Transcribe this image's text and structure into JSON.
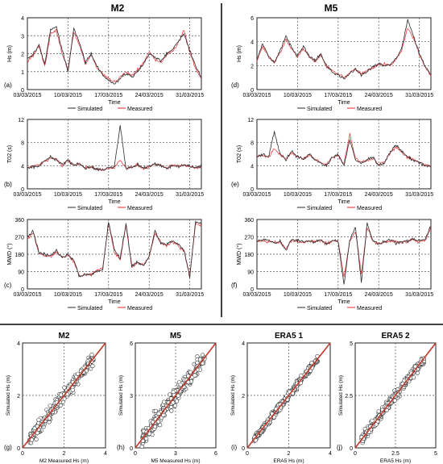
{
  "colors": {
    "simulated": "#2b2b2b",
    "measured": "#e8232a",
    "frame": "#222222",
    "grid": "#555555",
    "one_to_one": "#c0392b"
  },
  "time_axis": {
    "label": "Time",
    "ticks": [
      "03/03/2015",
      "10/03/2015",
      "17/03/2015",
      "24/03/2015",
      "31/03/2015"
    ],
    "legend": {
      "simulated": "Simulated",
      "measured": "Measured"
    }
  },
  "column_titles": {
    "left": "M2",
    "right": "M5"
  },
  "chart_data": [
    {
      "id": "a",
      "panel_label": "(a)",
      "type": "line",
      "station": "M2",
      "ylabel": "Hs (m)",
      "ylim": [
        0,
        4
      ],
      "yticks": [
        "0",
        "1",
        "2",
        "3",
        "4"
      ],
      "x_range_days": [
        0,
        30
      ],
      "y_values_normalized_hint": "wave",
      "series": [
        {
          "name": "Simulated",
          "x": [
            0,
            1,
            2,
            3,
            4,
            5,
            6,
            7,
            8,
            9,
            10,
            11,
            12,
            13,
            14,
            15,
            16,
            17,
            18,
            19,
            20,
            21,
            22,
            23,
            24,
            25,
            26,
            27,
            28,
            29,
            30
          ],
          "values": [
            1.7,
            2.0,
            2.5,
            1.4,
            3.3,
            3.5,
            2.2,
            1.0,
            3.4,
            2.6,
            1.5,
            2.0,
            1.3,
            0.8,
            0.5,
            0.3,
            0.6,
            0.9,
            0.7,
            1.0,
            1.4,
            2.0,
            1.8,
            1.6,
            2.0,
            2.2,
            2.7,
            3.1,
            2.2,
            1.3,
            0.7
          ]
        },
        {
          "name": "Measured",
          "x": [
            0,
            1,
            2,
            3,
            4,
            5,
            6,
            7,
            8,
            9,
            10,
            11,
            12,
            13,
            14,
            15,
            16,
            17,
            18,
            19,
            20,
            21,
            22,
            23,
            24,
            25,
            26,
            27,
            28,
            29,
            30
          ],
          "values": [
            1.6,
            1.9,
            2.4,
            1.3,
            3.1,
            3.3,
            2.0,
            1.1,
            3.2,
            2.5,
            1.4,
            1.9,
            1.2,
            0.9,
            0.6,
            0.4,
            0.7,
            1.0,
            0.8,
            1.1,
            1.5,
            2.1,
            1.7,
            1.5,
            1.9,
            2.1,
            2.6,
            3.3,
            2.1,
            1.2,
            0.6
          ]
        }
      ]
    },
    {
      "id": "b",
      "panel_label": "(b)",
      "type": "line",
      "station": "M2",
      "ylabel": "T02 (s)",
      "ylim": [
        0,
        12
      ],
      "yticks": [
        "0",
        "4",
        "8",
        "12"
      ],
      "x_range_days": [
        0,
        30
      ],
      "series": [
        {
          "name": "Simulated",
          "x": [
            0,
            2,
            4,
            5,
            6,
            7,
            8,
            9,
            10,
            11,
            12,
            13,
            14,
            15,
            16,
            17,
            18,
            19,
            20,
            21,
            22,
            23,
            24,
            25,
            26,
            27,
            28,
            29,
            30
          ],
          "values": [
            3.5,
            4.0,
            5.5,
            5.0,
            4.2,
            5.0,
            4.0,
            4.5,
            3.5,
            3.8,
            3.5,
            3.2,
            3.6,
            3.8,
            11.0,
            3.5,
            3.8,
            4.2,
            3.6,
            3.9,
            4.3,
            4.0,
            3.6,
            4.1,
            3.8,
            4.2,
            3.9,
            3.6,
            3.8
          ]
        },
        {
          "name": "Measured",
          "x": [
            0,
            2,
            4,
            5,
            6,
            7,
            8,
            9,
            10,
            11,
            12,
            13,
            14,
            15,
            16,
            17,
            18,
            19,
            20,
            21,
            22,
            23,
            24,
            25,
            26,
            27,
            28,
            29,
            30
          ],
          "values": [
            3.6,
            4.2,
            5.2,
            5.3,
            4.0,
            4.8,
            4.1,
            4.3,
            3.6,
            3.7,
            3.4,
            3.3,
            3.5,
            3.7,
            5.0,
            3.6,
            3.7,
            4.3,
            3.5,
            3.8,
            4.2,
            4.1,
            3.5,
            4.0,
            3.9,
            4.1,
            3.8,
            3.7,
            3.7
          ]
        }
      ]
    },
    {
      "id": "c",
      "panel_label": "(c)",
      "type": "line",
      "station": "M2",
      "ylabel": "MWD (°)",
      "ylim": [
        0,
        360
      ],
      "yticks": [
        "0",
        "90",
        "180",
        "270",
        "360"
      ],
      "x_range_days": [
        0,
        30
      ],
      "series": [
        {
          "name": "Simulated",
          "x": [
            0,
            1,
            2,
            3,
            4,
            5,
            6,
            7,
            8,
            9,
            10,
            11,
            12,
            13,
            14,
            15,
            16,
            17,
            18,
            19,
            20,
            21,
            22,
            23,
            24,
            25,
            26,
            27,
            28,
            29,
            30
          ],
          "values": [
            270,
            300,
            190,
            180,
            170,
            200,
            160,
            180,
            150,
            60,
            80,
            70,
            90,
            100,
            350,
            200,
            160,
            340,
            120,
            140,
            120,
            170,
            300,
            240,
            230,
            250,
            230,
            200,
            60,
            350,
            340
          ]
        },
        {
          "name": "Measured",
          "x": [
            0,
            1,
            2,
            3,
            4,
            5,
            6,
            7,
            8,
            9,
            10,
            11,
            12,
            13,
            14,
            15,
            16,
            17,
            18,
            19,
            20,
            21,
            22,
            23,
            24,
            25,
            26,
            27,
            28,
            29,
            30
          ],
          "values": [
            260,
            290,
            185,
            175,
            165,
            195,
            165,
            175,
            140,
            65,
            75,
            75,
            95,
            110,
            340,
            190,
            150,
            330,
            115,
            135,
            125,
            165,
            290,
            235,
            225,
            245,
            225,
            195,
            70,
            340,
            330
          ]
        }
      ]
    },
    {
      "id": "d",
      "panel_label": "(d)",
      "type": "line",
      "station": "M5",
      "ylabel": "Hs (m)",
      "ylim": [
        0,
        6
      ],
      "yticks": [
        "0",
        "2",
        "4",
        "6"
      ],
      "x_range_days": [
        0,
        30
      ],
      "series": [
        {
          "name": "Simulated",
          "x": [
            0,
            1,
            2,
            3,
            4,
            5,
            6,
            7,
            8,
            9,
            10,
            11,
            12,
            13,
            14,
            15,
            16,
            17,
            18,
            19,
            20,
            21,
            22,
            23,
            24,
            25,
            26,
            27,
            28,
            29,
            30
          ],
          "values": [
            2.5,
            3.8,
            2.8,
            2.2,
            3.2,
            4.5,
            3.5,
            2.8,
            3.6,
            2.8,
            2.4,
            3.0,
            2.0,
            1.5,
            1.2,
            0.9,
            1.3,
            1.8,
            1.2,
            1.5,
            1.9,
            2.2,
            2.0,
            2.1,
            2.6,
            3.5,
            5.8,
            4.5,
            3.0,
            2.0,
            1.2
          ]
        },
        {
          "name": "Measured",
          "x": [
            0,
            1,
            2,
            3,
            4,
            5,
            6,
            7,
            8,
            9,
            10,
            11,
            12,
            13,
            14,
            15,
            16,
            17,
            18,
            19,
            20,
            21,
            22,
            23,
            24,
            25,
            26,
            27,
            28,
            29,
            30
          ],
          "values": [
            2.4,
            3.6,
            2.7,
            2.3,
            3.0,
            4.2,
            3.4,
            2.7,
            3.4,
            2.7,
            2.3,
            2.9,
            1.9,
            1.6,
            1.3,
            1.0,
            1.4,
            1.7,
            1.3,
            1.6,
            1.8,
            2.1,
            2.1,
            2.0,
            2.5,
            3.3,
            5.2,
            4.3,
            2.9,
            1.9,
            1.1
          ]
        }
      ]
    },
    {
      "id": "e",
      "panel_label": "(e)",
      "type": "line",
      "station": "M5",
      "ylabel": "T02 (s)",
      "ylim": [
        0,
        12
      ],
      "yticks": [
        "0",
        "4",
        "8",
        "12"
      ],
      "x_range_days": [
        0,
        30
      ],
      "series": [
        {
          "name": "Simulated",
          "x": [
            0,
            1,
            2,
            3,
            4,
            5,
            6,
            7,
            8,
            9,
            10,
            11,
            12,
            13,
            14,
            15,
            16,
            17,
            18,
            19,
            20,
            21,
            22,
            23,
            24,
            25,
            26,
            27,
            28,
            29,
            30
          ],
          "values": [
            5.5,
            6.0,
            5.5,
            10.0,
            6.0,
            5.0,
            6.5,
            5.5,
            5.0,
            6.0,
            5.0,
            4.5,
            4.0,
            5.5,
            6.0,
            4.0,
            8.5,
            5.0,
            4.5,
            5.0,
            5.5,
            4.0,
            4.5,
            6.5,
            7.5,
            6.5,
            5.5,
            5.0,
            4.5,
            4.0,
            3.8
          ]
        },
        {
          "name": "Measured",
          "x": [
            0,
            1,
            2,
            3,
            4,
            5,
            6,
            7,
            8,
            9,
            10,
            11,
            12,
            13,
            14,
            15,
            16,
            17,
            18,
            19,
            20,
            21,
            22,
            23,
            24,
            25,
            26,
            27,
            28,
            29,
            30
          ],
          "values": [
            5.6,
            5.8,
            5.4,
            7.0,
            5.8,
            5.2,
            6.2,
            5.6,
            5.1,
            5.8,
            5.2,
            4.6,
            4.2,
            5.4,
            5.8,
            4.2,
            9.5,
            5.2,
            4.6,
            4.9,
            5.3,
            4.2,
            4.6,
            6.2,
            7.2,
            6.3,
            5.4,
            5.1,
            4.6,
            4.1,
            3.9
          ]
        }
      ]
    },
    {
      "id": "f",
      "panel_label": "(f)",
      "type": "line",
      "station": "M5",
      "ylabel": "MWD (°)",
      "ylim": [
        0,
        360
      ],
      "yticks": [
        "0",
        "90",
        "180",
        "270",
        "360"
      ],
      "x_range_days": [
        0,
        30
      ],
      "series": [
        {
          "name": "Simulated",
          "x": [
            0,
            1,
            2,
            3,
            4,
            5,
            6,
            7,
            8,
            9,
            10,
            11,
            12,
            13,
            14,
            15,
            16,
            17,
            18,
            19,
            20,
            21,
            22,
            23,
            24,
            25,
            26,
            27,
            28,
            29,
            30
          ],
          "values": [
            250,
            255,
            250,
            240,
            245,
            200,
            255,
            250,
            245,
            250,
            240,
            255,
            230,
            250,
            245,
            20,
            250,
            320,
            30,
            340,
            250,
            230,
            245,
            250,
            240,
            245,
            250,
            260,
            250,
            255,
            330
          ]
        },
        {
          "name": "Measured",
          "x": [
            0,
            1,
            2,
            3,
            4,
            5,
            6,
            7,
            8,
            9,
            10,
            11,
            12,
            13,
            14,
            15,
            16,
            17,
            18,
            19,
            20,
            21,
            22,
            23,
            24,
            25,
            26,
            27,
            28,
            29,
            30
          ],
          "values": [
            245,
            250,
            245,
            245,
            240,
            210,
            250,
            245,
            240,
            245,
            245,
            250,
            235,
            245,
            250,
            60,
            245,
            300,
            80,
            320,
            245,
            235,
            240,
            245,
            245,
            240,
            245,
            255,
            245,
            250,
            320
          ]
        }
      ]
    },
    {
      "id": "g",
      "panel_label": "(g)",
      "type": "scatter",
      "title": "M2",
      "xlabel": "M2 Measured Hs (m)",
      "ylabel": "Simulated Hs (m)",
      "xlim": [
        0,
        4
      ],
      "ylim": [
        0,
        4
      ],
      "xticks": [
        "0",
        "2",
        "4"
      ],
      "yticks": [
        "0",
        "2",
        "4"
      ],
      "spread": 0.35,
      "n_points": 300
    },
    {
      "id": "h",
      "panel_label": "(h)",
      "type": "scatter",
      "title": "M5",
      "xlabel": "M5 Measured Hs (m)",
      "ylabel": "Simulated Hs (m)",
      "xlim": [
        0,
        6.5
      ],
      "ylim": [
        0,
        6.5
      ],
      "xticks": [
        "0",
        "3",
        "6"
      ],
      "yticks": [
        "0",
        "3",
        "6"
      ],
      "spread": 0.45,
      "n_points": 300
    },
    {
      "id": "i",
      "panel_label": "(i)",
      "type": "scatter",
      "title": "ERA5 1",
      "xlabel": "ERA5 Hs (m)",
      "ylabel": "Simulated Hs (m)",
      "xlim": [
        0,
        4
      ],
      "ylim": [
        0,
        4
      ],
      "xticks": [
        "0",
        "2",
        "4"
      ],
      "yticks": [
        "0",
        "2",
        "4"
      ],
      "spread": 0.2,
      "n_points": 300
    },
    {
      "id": "j",
      "panel_label": "(j)",
      "type": "scatter",
      "title": "ERA5 2",
      "xlabel": "ERA5 Hs (m)",
      "ylabel": "Simulated Hs (m)",
      "xlim": [
        0,
        5
      ],
      "ylim": [
        0,
        5
      ],
      "xticks": [
        "0",
        "2.5",
        "5"
      ],
      "yticks": [
        "0",
        "2.5",
        "5"
      ],
      "spread": 0.25,
      "n_points": 300
    }
  ]
}
